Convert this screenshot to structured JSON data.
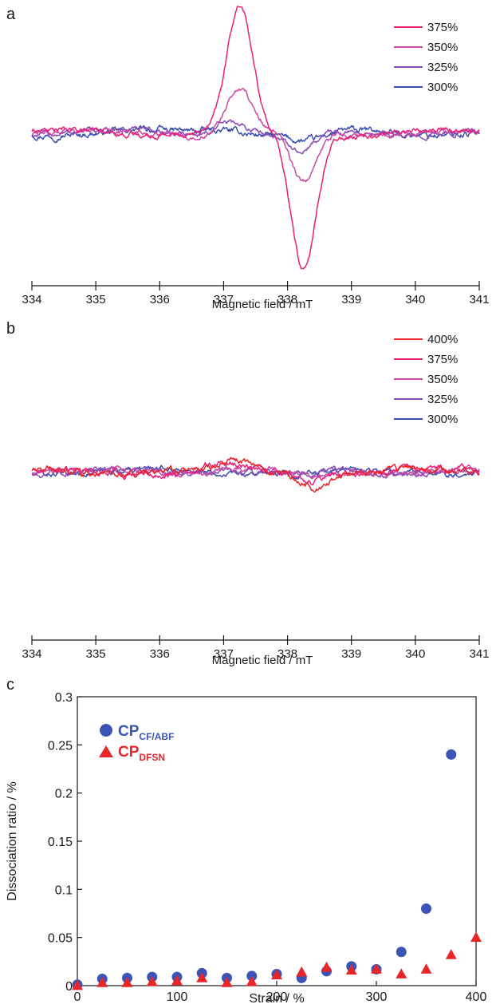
{
  "chart_data": [
    {
      "type": "line",
      "panel_label": "a",
      "xlabel": "Magnetic field / mT",
      "ylabel": "",
      "xlim": [
        334,
        341
      ],
      "ylim": [
        -1,
        1
      ],
      "x_ticks": [
        334,
        335,
        336,
        337,
        338,
        339,
        340,
        341
      ],
      "legend_position": "top-right",
      "series": [
        {
          "name": "375%",
          "color": "#e8207a",
          "peak_x": 337.25,
          "peak": 0.92,
          "trough_x": 338.25,
          "trough": -1.0,
          "width": 0.28,
          "noise": 0.025
        },
        {
          "name": "350%",
          "color": "#c84aa6",
          "peak_x": 337.25,
          "peak": 0.32,
          "trough_x": 338.25,
          "trough": -0.38,
          "width": 0.28,
          "noise": 0.025
        },
        {
          "name": "325%",
          "color": "#8a4ab4",
          "peak_x": 337.1,
          "peak": 0.09,
          "trough_x": 338.2,
          "trough": -0.16,
          "width": 0.3,
          "noise": 0.025
        },
        {
          "name": "300%",
          "color": "#3b4fb0",
          "peak_x": 337.0,
          "peak": 0.03,
          "trough_x": 338.3,
          "trough": -0.07,
          "width": 0.4,
          "noise": 0.03
        }
      ]
    },
    {
      "type": "line",
      "panel_label": "b",
      "xlabel": "Magnetic field / mT",
      "ylabel": "",
      "xlim": [
        334,
        341
      ],
      "ylim": [
        -1,
        1
      ],
      "x_ticks": [
        334,
        335,
        336,
        337,
        338,
        339,
        340,
        341
      ],
      "legend_position": "top-right",
      "series": [
        {
          "name": "400%",
          "color": "#e8262a",
          "peak_x": 337.2,
          "peak": 0.07,
          "trough_x": 338.4,
          "trough": -0.09,
          "width": 0.35,
          "noise": 0.03
        },
        {
          "name": "375%",
          "color": "#e8207a",
          "peak_x": 337.0,
          "peak": 0.06,
          "trough_x": 338.3,
          "trough": -0.07,
          "width": 0.35,
          "noise": 0.03
        },
        {
          "name": "350%",
          "color": "#c84aa6",
          "peak_x": 337.1,
          "peak": 0.03,
          "trough_x": 338.3,
          "trough": -0.04,
          "width": 0.4,
          "noise": 0.025
        },
        {
          "name": "325%",
          "color": "#8a4ab4",
          "peak_x": 337.1,
          "peak": 0.02,
          "trough_x": 338.3,
          "trough": -0.03,
          "width": 0.4,
          "noise": 0.025
        },
        {
          "name": "300%",
          "color": "#3b4fb0",
          "peak_x": 337.0,
          "peak": 0.01,
          "trough_x": 338.3,
          "trough": -0.02,
          "width": 0.4,
          "noise": 0.025
        }
      ]
    },
    {
      "type": "scatter",
      "panel_label": "c",
      "xlabel": "Strain / %",
      "ylabel": "Dissociation ratio / %",
      "xlim": [
        0,
        400
      ],
      "ylim": [
        0,
        0.3
      ],
      "x_ticks": [
        0,
        100,
        200,
        300,
        400
      ],
      "y_ticks": [
        "0",
        "0.05",
        "0.1",
        "0.15",
        "0.2",
        "0.25",
        "0.3"
      ],
      "legend_position": "top-left",
      "series": [
        {
          "name": "CP",
          "subscript": "CF/ABF",
          "color": "#3b54b5",
          "marker": "circle",
          "x": [
            0,
            25,
            50,
            75,
            100,
            125,
            150,
            175,
            200,
            225,
            250,
            275,
            300,
            325,
            350,
            375
          ],
          "y": [
            0.001,
            0.007,
            0.008,
            0.009,
            0.009,
            0.013,
            0.008,
            0.01,
            0.012,
            0.008,
            0.015,
            0.02,
            0.017,
            0.035,
            0.08,
            0.24
          ]
        },
        {
          "name": "CP",
          "subscript": "DFSN",
          "color": "#e8262a",
          "marker": "triangle",
          "x": [
            0,
            25,
            50,
            75,
            100,
            125,
            150,
            175,
            200,
            225,
            250,
            275,
            300,
            325,
            350,
            375,
            400
          ],
          "y": [
            0.0,
            0.003,
            0.003,
            0.004,
            0.005,
            0.008,
            0.003,
            0.004,
            0.011,
            0.014,
            0.019,
            0.016,
            0.017,
            0.012,
            0.017,
            0.032,
            0.05
          ]
        }
      ]
    }
  ]
}
